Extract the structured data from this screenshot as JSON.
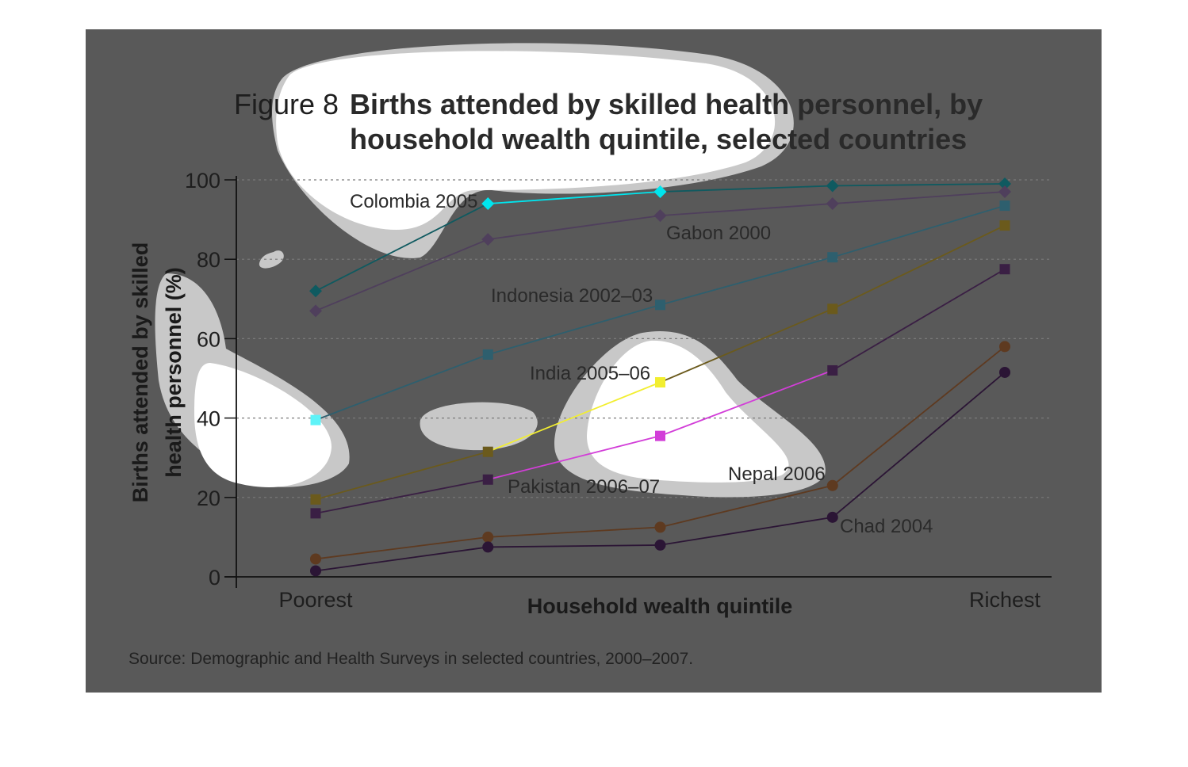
{
  "figure": {
    "label": "Figure 8",
    "title_line1": "Births attended by skilled health personnel, by",
    "title_line2": "household wealth quintile, selected countries",
    "source": "Source: Demographic and Health Surveys in selected countries, 2000–2007."
  },
  "chart_data": {
    "type": "line",
    "xlabel": "Household wealth quintile",
    "ylabel_line1": "Births attended by skilled",
    "ylabel_line2": "health personnel (%)",
    "categories": [
      "Poorest",
      "",
      "",
      "",
      "Richest"
    ],
    "ylim": [
      0,
      100
    ],
    "yticks": [
      "0",
      "20",
      "40",
      "60",
      "80",
      "100"
    ],
    "grid": "horizontal dashed",
    "series": [
      {
        "name": "Colombia 2005",
        "marker": "diamond",
        "color": "#0f5a60",
        "highlight": "#00e5ee",
        "values": [
          72,
          94,
          97,
          98.5,
          99
        ]
      },
      {
        "name": "Gabon 2000",
        "marker": "diamond",
        "color": "#4f3f5c",
        "values": [
          67,
          85,
          91,
          94,
          97
        ]
      },
      {
        "name": "Indonesia 2002–03",
        "marker": "square",
        "color": "#2e5f6e",
        "highlight": "#5ef3f8",
        "values": [
          39.5,
          56,
          68.5,
          80.5,
          93.5
        ]
      },
      {
        "name": "India 2005–06",
        "marker": "square",
        "color": "#6b5a1c",
        "highlight": "#f2ee30",
        "values": [
          19.5,
          31.5,
          49,
          67.5,
          88.5
        ]
      },
      {
        "name": "Pakistan 2006–07",
        "marker": "square",
        "color": "#3a1f44",
        "highlight": "#d23ed8",
        "values": [
          16,
          24.5,
          35.5,
          52,
          77.5
        ]
      },
      {
        "name": "Nepal 2006",
        "marker": "circle",
        "color": "#5e3a20",
        "values": [
          4.5,
          10,
          12.5,
          23,
          58
        ]
      },
      {
        "name": "Chad 2004",
        "marker": "circle",
        "color": "#2b1535",
        "values": [
          1.5,
          7.5,
          8,
          15,
          51.5
        ]
      }
    ]
  }
}
